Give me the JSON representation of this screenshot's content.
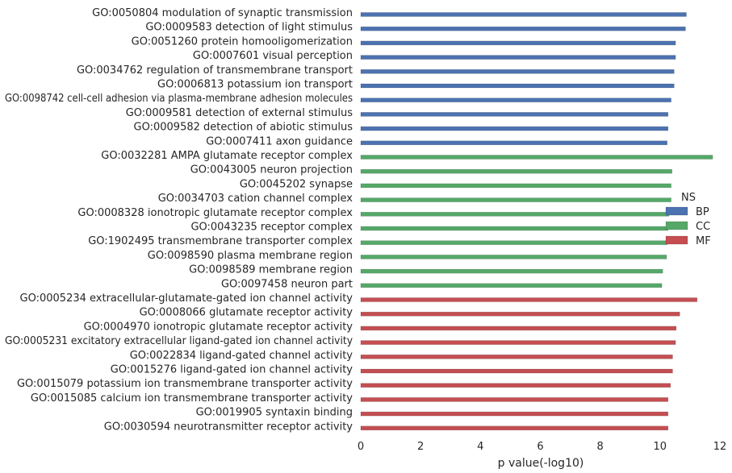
{
  "chart_data": {
    "type": "bar",
    "orientation": "horizontal",
    "xlabel": "p value(-log10)",
    "ylabel": "",
    "xlim": [
      0,
      12
    ],
    "xticks": [
      "0",
      "2",
      "4",
      "6",
      "8",
      "10",
      "12"
    ],
    "grid": false,
    "legend": {
      "title": "NS",
      "placement": "right",
      "entries": [
        {
          "label": "BP",
          "color": "#4c72b0"
        },
        {
          "label": "CC",
          "color": "#55a868"
        },
        {
          "label": "MF",
          "color": "#c44e52"
        }
      ]
    },
    "categories": [
      "GO:0050804 modulation of synaptic transmission",
      "GO:0009583 detection of light stimulus",
      "GO:0051260 protein homooligomerization",
      "GO:0007601 visual perception",
      "GO:0034762 regulation of transmembrane transport",
      "GO:0006813 potassium ion transport",
      "GO:0098742 cell-cell adhesion via plasma-membrane adhesion molecules",
      "GO:0009581 detection of external stimulus",
      "GO:0009582 detection of abiotic stimulus",
      "GO:0007411 axon guidance",
      "GO:0032281 AMPA glutamate receptor complex",
      "GO:0043005 neuron projection",
      "GO:0045202 synapse",
      "GO:0034703 cation channel complex",
      "GO:0008328 ionotropic glutamate receptor complex",
      "GO:0043235 receptor complex",
      "GO:1902495 transmembrane transporter complex",
      "GO:0098590 plasma membrane region",
      "GO:0098589 membrane region",
      "GO:0097458 neuron part",
      "GO:0005234 extracellular-glutamate-gated ion channel activity",
      "GO:0008066 glutamate receptor activity",
      "GO:0004970 ionotropic glutamate receptor activity",
      "GO:0005231 excitatory extracellular ligand-gated ion channel activity",
      "GO:0022834 ligand-gated channel activity",
      "GO:0015276 ligand-gated ion channel activity",
      "GO:0015079 potassium ion transmembrane transporter activity",
      "GO:0015085 calcium ion transmembrane transporter activity",
      "GO:0019905 syntaxin binding",
      "GO:0030594 neurotransmitter receptor activity"
    ],
    "values": [
      10.88,
      10.85,
      10.52,
      10.52,
      10.47,
      10.47,
      10.37,
      10.27,
      10.27,
      10.24,
      11.76,
      10.4,
      10.37,
      10.37,
      10.3,
      10.27,
      10.24,
      10.22,
      10.09,
      10.06,
      11.24,
      10.66,
      10.54,
      10.52,
      10.42,
      10.42,
      10.35,
      10.27,
      10.27,
      10.27
    ],
    "groups": [
      "BP",
      "BP",
      "BP",
      "BP",
      "BP",
      "BP",
      "BP",
      "BP",
      "BP",
      "BP",
      "CC",
      "CC",
      "CC",
      "CC",
      "CC",
      "CC",
      "CC",
      "CC",
      "CC",
      "CC",
      "MF",
      "MF",
      "MF",
      "MF",
      "MF",
      "MF",
      "MF",
      "MF",
      "MF",
      "MF"
    ]
  }
}
